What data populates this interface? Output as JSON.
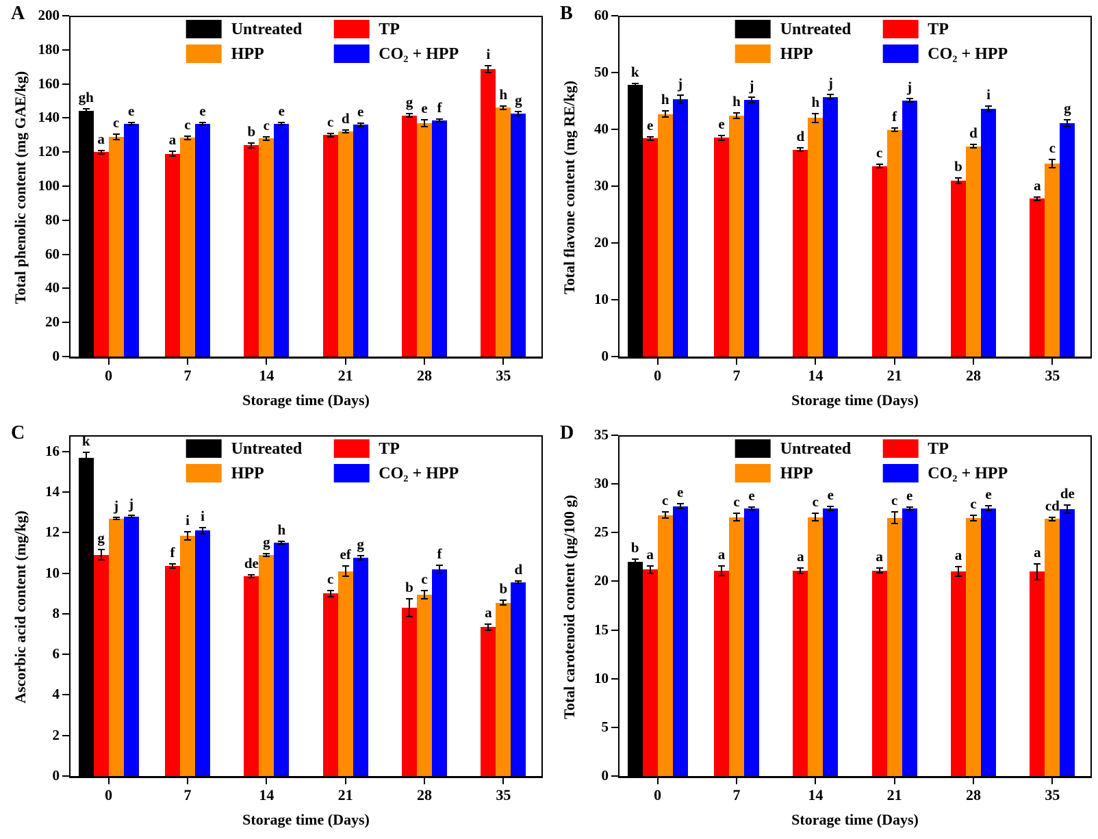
{
  "figure": {
    "background": "#ffffff",
    "xlabel": "Storage time (Days)"
  },
  "colors": {
    "untreated": "#000000",
    "tp": "#ff0000",
    "hpp": "#ff8c00",
    "co2_hpp": "#0000ff"
  },
  "legend": {
    "labels": [
      "Untreated",
      "TP",
      "HPP",
      "CO₂ + HPP"
    ]
  },
  "chart_data": [
    {
      "panel_label": "A",
      "type": "bar",
      "ylabel": "Total phenolic content (mg GAE/kg)",
      "xlabel": "Storage time (Days)",
      "categories": [
        "0",
        "7",
        "14",
        "21",
        "28",
        "35"
      ],
      "ylim": [
        0,
        200
      ],
      "ytick_values": [
        0,
        20,
        40,
        60,
        80,
        100,
        120,
        140,
        160,
        180,
        200
      ],
      "yticks": [
        "0",
        "20",
        "40",
        "60",
        "80",
        "100",
        "120",
        "140",
        "160",
        "180",
        "200"
      ],
      "grid": false,
      "legend_position": "top-center-inside",
      "series": [
        {
          "name": "Untreated",
          "color": "#000000",
          "values": [
            144,
            null,
            null,
            null,
            null,
            null
          ],
          "errors": [
            1.5,
            null,
            null,
            null,
            null,
            null
          ],
          "letters": [
            "gh",
            "",
            "",
            "",
            "",
            ""
          ]
        },
        {
          "name": "TP",
          "color": "#ff0000",
          "values": [
            120,
            119,
            124,
            130,
            141.5,
            168.5
          ],
          "errors": [
            1,
            1.5,
            1.5,
            1,
            1,
            2
          ],
          "letters": [
            "a",
            "a",
            "b",
            "c",
            "g",
            "i"
          ]
        },
        {
          "name": "HPP",
          "color": "#ff8c00",
          "values": [
            129,
            128.5,
            128,
            132,
            137,
            146
          ],
          "errors": [
            1.5,
            1,
            1,
            0.8,
            2,
            1
          ],
          "letters": [
            "c",
            "c",
            "c",
            "d",
            "e",
            "h"
          ]
        },
        {
          "name": "CO₂ + HPP",
          "color": "#0000ff",
          "values": [
            136.5,
            136.5,
            136.5,
            136,
            138.5,
            142.5
          ],
          "errors": [
            0.8,
            0.8,
            0.8,
            1,
            0.8,
            1.2
          ],
          "letters": [
            "e",
            "e",
            "e",
            "e",
            "f",
            "g"
          ]
        }
      ]
    },
    {
      "panel_label": "B",
      "type": "bar",
      "ylabel": "Total flavone content (mg RE/kg)",
      "xlabel": "Storage time (Days)",
      "categories": [
        "0",
        "7",
        "14",
        "21",
        "28",
        "35"
      ],
      "ylim": [
        0,
        60
      ],
      "ytick_values": [
        0,
        10,
        20,
        30,
        40,
        50,
        60
      ],
      "yticks": [
        "0",
        "10",
        "20",
        "30",
        "40",
        "50",
        "60"
      ],
      "grid": false,
      "legend_position": "top-center-inside",
      "series": [
        {
          "name": "Untreated",
          "color": "#000000",
          "values": [
            47.8,
            null,
            null,
            null,
            null,
            null
          ],
          "errors": [
            0.3,
            null,
            null,
            null,
            null,
            null
          ],
          "letters": [
            "k",
            "",
            "",
            "",
            "",
            ""
          ]
        },
        {
          "name": "TP",
          "color": "#ff0000",
          "values": [
            38.4,
            38.5,
            36.4,
            33.5,
            31,
            27.8
          ],
          "errors": [
            0.3,
            0.4,
            0.3,
            0.3,
            0.5,
            0.3
          ],
          "letters": [
            "e",
            "e",
            "d",
            "c",
            "b",
            "a"
          ]
        },
        {
          "name": "HPP",
          "color": "#ff8c00",
          "values": [
            42.7,
            42.4,
            42,
            39.9,
            37,
            34
          ],
          "errors": [
            0.5,
            0.5,
            0.8,
            0.3,
            0.3,
            0.7
          ],
          "letters": [
            "h",
            "h",
            "h",
            "f",
            "d",
            "c"
          ]
        },
        {
          "name": "CO₂ + HPP",
          "color": "#0000ff",
          "values": [
            45.3,
            45.2,
            45.7,
            45.1,
            43.6,
            41.1
          ],
          "errors": [
            0.7,
            0.5,
            0.4,
            0.3,
            0.5,
            0.6
          ],
          "letters": [
            "j",
            "j",
            "j",
            "j",
            "i",
            "g"
          ]
        }
      ]
    },
    {
      "panel_label": "C",
      "type": "bar",
      "ylabel": "Ascorbic acid content (mg/kg)",
      "xlabel": "Storage time (Days)",
      "categories": [
        "0",
        "7",
        "14",
        "21",
        "28",
        "35"
      ],
      "ylim": [
        0,
        16.8
      ],
      "ytick_values": [
        0,
        2,
        4,
        6,
        8,
        10,
        12,
        14,
        16
      ],
      "yticks": [
        "0",
        "2",
        "4",
        "6",
        "8",
        "10",
        "12",
        "14",
        "16"
      ],
      "grid": false,
      "legend_position": "top-center-inside",
      "series": [
        {
          "name": "Untreated",
          "color": "#000000",
          "values": [
            15.7,
            null,
            null,
            null,
            null,
            null
          ],
          "errors": [
            0.25,
            null,
            null,
            null,
            null,
            null
          ],
          "letters": [
            "k",
            "",
            "",
            "",
            "",
            ""
          ]
        },
        {
          "name": "TP",
          "color": "#ff0000",
          "values": [
            10.9,
            10.35,
            9.85,
            9.0,
            8.3,
            7.35
          ],
          "errors": [
            0.25,
            0.1,
            0.08,
            0.15,
            0.45,
            0.15
          ],
          "letters": [
            "g",
            "f",
            "de",
            "c",
            "b",
            "a"
          ]
        },
        {
          "name": "HPP",
          "color": "#ff8c00",
          "values": [
            12.7,
            11.85,
            10.9,
            10.1,
            8.95,
            8.55
          ],
          "errors": [
            0.05,
            0.2,
            0.08,
            0.25,
            0.2,
            0.12
          ],
          "letters": [
            "j",
            "i",
            "g",
            "ef",
            "c",
            "b"
          ]
        },
        {
          "name": "CO₂ + HPP",
          "color": "#0000ff",
          "values": [
            12.8,
            12.1,
            11.5,
            10.75,
            10.2,
            9.55
          ],
          "errors": [
            0.05,
            0.15,
            0.07,
            0.1,
            0.2,
            0.05
          ],
          "letters": [
            "j",
            "i",
            "h",
            "g",
            "f",
            "d"
          ]
        }
      ]
    },
    {
      "panel_label": "D",
      "type": "bar",
      "ylabel": "Total carotenoid content (μg/100 g)",
      "xlabel": "Storage time (Days)",
      "categories": [
        "0",
        "7",
        "14",
        "21",
        "28",
        "35"
      ],
      "ylim": [
        0,
        35
      ],
      "ytick_values": [
        0,
        5,
        10,
        15,
        20,
        25,
        30,
        35
      ],
      "yticks": [
        "0",
        "5",
        "10",
        "15",
        "20",
        "25",
        "30",
        "35"
      ],
      "grid": false,
      "legend_position": "top-center-inside",
      "series": [
        {
          "name": "Untreated",
          "color": "#000000",
          "values": [
            22.0,
            null,
            null,
            null,
            null,
            null
          ],
          "errors": [
            0.3,
            null,
            null,
            null,
            null,
            null
          ],
          "letters": [
            "b",
            "",
            "",
            "",
            "",
            ""
          ]
        },
        {
          "name": "TP",
          "color": "#ff0000",
          "values": [
            21.2,
            21.1,
            21.1,
            21.1,
            21.0,
            21.0
          ],
          "errors": [
            0.4,
            0.5,
            0.3,
            0.25,
            0.5,
            0.8
          ],
          "letters": [
            "a",
            "a",
            "a",
            "a",
            "a",
            "a"
          ]
        },
        {
          "name": "HPP",
          "color": "#ff8c00",
          "values": [
            26.8,
            26.6,
            26.6,
            26.5,
            26.5,
            26.4
          ],
          "errors": [
            0.3,
            0.4,
            0.4,
            0.6,
            0.25,
            0.2
          ],
          "letters": [
            "c",
            "c",
            "c",
            "c",
            "c",
            "cd"
          ]
        },
        {
          "name": "CO₂ + HPP",
          "color": "#0000ff",
          "values": [
            27.7,
            27.5,
            27.5,
            27.5,
            27.5,
            27.4
          ],
          "errors": [
            0.25,
            0.15,
            0.2,
            0.15,
            0.25,
            0.4
          ],
          "letters": [
            "e",
            "e",
            "e",
            "e",
            "e",
            "de"
          ]
        }
      ]
    }
  ]
}
